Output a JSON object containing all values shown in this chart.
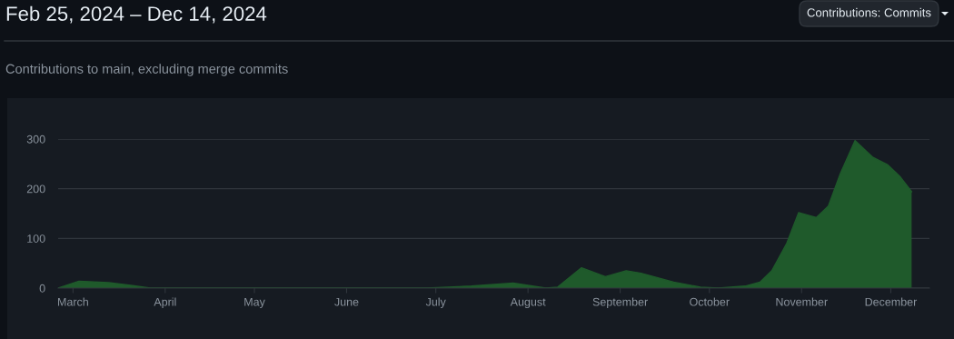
{
  "chart_data": {
    "type": "area",
    "title": "Feb 25, 2024 – Dec 14, 2024",
    "subtitle": "Contributions to main, excluding merge commits",
    "annotations": [
      "Contributions: Commits"
    ],
    "x": [
      "2024-02-25",
      "2024-03-03",
      "2024-03-13",
      "2024-03-21",
      "2024-03-27",
      "2024-06-28",
      "2024-07-13",
      "2024-07-27",
      "2024-08-07",
      "2024-08-11",
      "2024-08-19",
      "2024-08-27",
      "2024-09-03",
      "2024-09-08",
      "2024-09-19",
      "2024-09-28",
      "2024-10-04",
      "2024-10-13",
      "2024-10-18",
      "2024-10-22",
      "2024-10-27",
      "2024-10-31",
      "2024-11-06",
      "2024-11-10",
      "2024-11-14",
      "2024-11-19",
      "2024-11-25",
      "2024-11-30",
      "2024-12-04",
      "2024-12-08"
    ],
    "series": [
      {
        "color": "#1f5a2b",
        "values": [
          0,
          14,
          11,
          5,
          0,
          0,
          4,
          10,
          0,
          2,
          41,
          23,
          35,
          30,
          12,
          2,
          0,
          4,
          12,
          35,
          90,
          152,
          142,
          165,
          230,
          297,
          263,
          248,
          225,
          194
        ]
      }
    ],
    "xlim": [
      "2024-02-25",
      "2024-12-14"
    ],
    "xticks": [
      {
        "value": "2024-03-01",
        "label": "March"
      },
      {
        "value": "2024-04-01",
        "label": "April"
      },
      {
        "value": "2024-05-01",
        "label": "May"
      },
      {
        "value": "2024-06-01",
        "label": "June"
      },
      {
        "value": "2024-07-01",
        "label": "July"
      },
      {
        "value": "2024-08-01",
        "label": "August"
      },
      {
        "value": "2024-09-01",
        "label": "September"
      },
      {
        "value": "2024-10-01",
        "label": "October"
      },
      {
        "value": "2024-11-01",
        "label": "November"
      },
      {
        "value": "2024-12-01",
        "label": "December"
      }
    ],
    "ylim": [
      0,
      300
    ],
    "yticks": [
      0,
      100,
      200,
      300
    ],
    "grid": "y"
  }
}
